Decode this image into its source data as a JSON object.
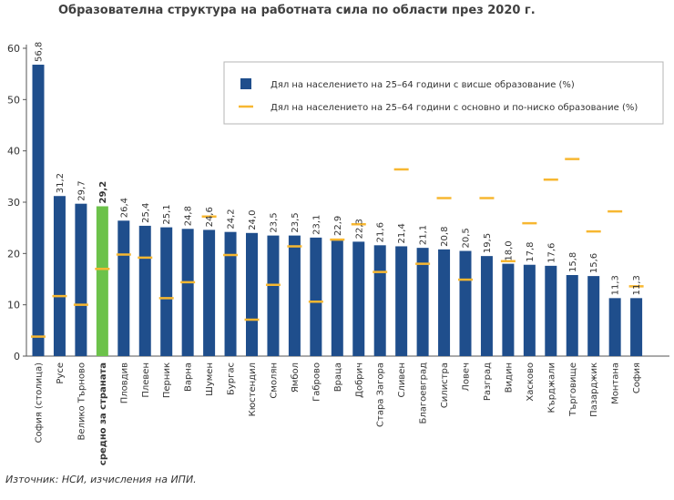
{
  "title": "Образователна структура на работната сила по области през 2020 г.",
  "source": "Източник: НСИ, изчисления на ИПИ.",
  "colors": {
    "bar": "#1f4e8c",
    "highlight_bar": "#6cc24a",
    "highlight_label": "#d6203a",
    "marker": "#f7b731",
    "axis": "#555555"
  },
  "chart_data": {
    "type": "bar",
    "ylim": [
      0,
      60
    ],
    "yticks": [
      0,
      10,
      20,
      30,
      40,
      50,
      60
    ],
    "grid": false,
    "legend_position": "top-right",
    "categories": [
      "София (столица)",
      "Русе",
      "Велико Търново",
      "средно за страната",
      "Пловдив",
      "Плевен",
      "Перник",
      "Варна",
      "Шумен",
      "Бургас",
      "Кюстендил",
      "Смолян",
      "Ямбол",
      "Габрово",
      "Враца",
      "Добрич",
      "Стара Загора",
      "Сливен",
      "Благоевград",
      "Силистра",
      "Ловеч",
      "Разград",
      "Видин",
      "Хасково",
      "Кърджали",
      "Търговище",
      "Пазарджик",
      "Монтана",
      "София"
    ],
    "highlight_index": 3,
    "series": [
      {
        "name": "Дял на населението на 25–64 години с висше образование (%)",
        "kind": "bar",
        "values": [
          56.8,
          31.2,
          29.7,
          29.2,
          26.4,
          25.4,
          25.1,
          24.8,
          24.6,
          24.2,
          24.0,
          23.5,
          23.5,
          23.1,
          22.9,
          22.3,
          21.6,
          21.4,
          21.1,
          20.8,
          20.5,
          19.5,
          18.0,
          17.8,
          17.6,
          15.8,
          15.6,
          11.3,
          11.3
        ],
        "value_labels": [
          "56,8",
          "31,2",
          "29,7",
          "29,2",
          "26,4",
          "25,4",
          "25,1",
          "24,8",
          "24,6",
          "24,2",
          "24,0",
          "23,5",
          "23,5",
          "23,1",
          "22,9",
          "22,3",
          "21,6",
          "21,4",
          "21,1",
          "20,8",
          "20,5",
          "19,5",
          "18,0",
          "17,8",
          "17,6",
          "15,8",
          "15,6",
          "11,3",
          "11,3"
        ]
      },
      {
        "name": "Дял на населението на 25–64 години с основно и по-ниско образование (%)",
        "kind": "marker",
        "values": [
          3.8,
          11.7,
          10.0,
          17.0,
          19.8,
          19.2,
          11.3,
          14.4,
          27.2,
          19.7,
          7.1,
          13.9,
          21.4,
          10.6,
          22.7,
          25.7,
          16.4,
          36.4,
          18.0,
          30.8,
          14.9,
          30.8,
          18.5,
          25.9,
          34.4,
          38.4,
          24.3,
          28.2,
          13.6
        ]
      }
    ]
  }
}
